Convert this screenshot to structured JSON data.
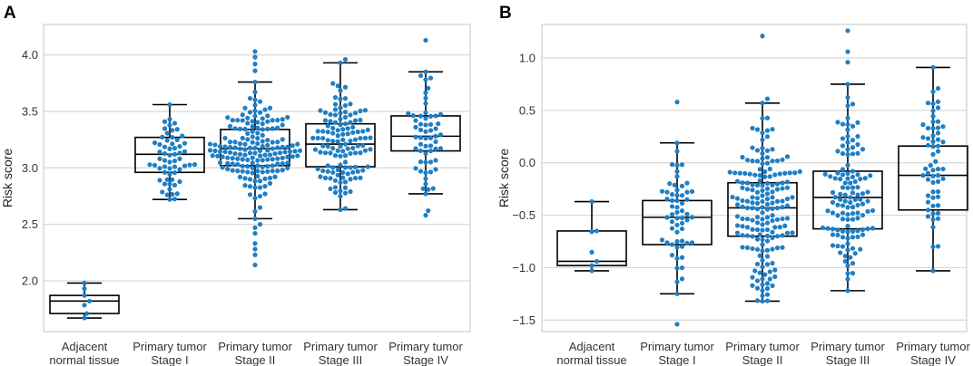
{
  "chart_data": [
    {
      "panel": "A",
      "type": "box-swarm",
      "ylabel": "Risk score",
      "xlabel": "",
      "ylim": [
        1.55,
        4.27
      ],
      "yticks": [
        "2.0",
        "2.5",
        "3.0",
        "3.5",
        "4.0"
      ],
      "ytick_values": [
        2.0,
        2.5,
        3.0,
        3.5,
        4.0
      ],
      "grid": "horizontal",
      "point_color": "#1f7fc4",
      "categories": [
        {
          "line1": "Adjacent",
          "line2": "normal tissue",
          "n": 7,
          "whisker_low": 1.67,
          "q1": 1.71,
          "median": 1.82,
          "q3": 1.87,
          "whisker_high": 1.98,
          "outliers": []
        },
        {
          "line1": "Primary tumor",
          "line2": "Stage I",
          "n": 60,
          "whisker_low": 2.72,
          "q1": 2.96,
          "median": 3.12,
          "q3": 3.27,
          "whisker_high": 3.56,
          "outliers": []
        },
        {
          "line1": "Primary tumor",
          "line2": "Stage II",
          "n": 180,
          "whisker_low": 2.55,
          "q1": 3.02,
          "median": 3.17,
          "q3": 3.34,
          "whisker_high": 3.76,
          "outliers": [
            2.14,
            2.23,
            2.28,
            2.33,
            2.42,
            2.47,
            2.5,
            3.86,
            3.92,
            3.98,
            4.03
          ]
        },
        {
          "line1": "Primary tumor",
          "line2": "Stage III",
          "n": 125,
          "whisker_low": 2.63,
          "q1": 3.01,
          "median": 3.21,
          "q3": 3.39,
          "whisker_high": 3.93,
          "outliers": [
            3.96
          ]
        },
        {
          "line1": "Primary tumor",
          "line2": "Stage IV",
          "n": 60,
          "whisker_low": 2.77,
          "q1": 3.15,
          "median": 3.28,
          "q3": 3.46,
          "whisker_high": 3.85,
          "outliers": [
            2.58,
            2.62,
            4.13
          ]
        }
      ]
    },
    {
      "panel": "B",
      "type": "box-swarm",
      "ylabel": "Risk score",
      "xlabel": "",
      "ylim": [
        -1.61,
        1.32
      ],
      "yticks": [
        "−1.5",
        "−1.0",
        "−0.5",
        "0.0",
        "0.5",
        "1.0"
      ],
      "ytick_values": [
        -1.5,
        -1.0,
        -0.5,
        0.0,
        0.5,
        1.0
      ],
      "grid": "horizontal",
      "point_color": "#1f7fc4",
      "categories": [
        {
          "line1": "Adjacent",
          "line2": "normal tissue",
          "n": 7,
          "whisker_low": -1.03,
          "q1": -0.98,
          "median": -0.94,
          "q3": -0.65,
          "whisker_high": -0.37,
          "outliers": []
        },
        {
          "line1": "Primary tumor",
          "line2": "Stage I",
          "n": 60,
          "whisker_low": -1.25,
          "q1": -0.78,
          "median": -0.52,
          "q3": -0.36,
          "whisker_high": 0.19,
          "outliers": [
            0.58,
            -1.54
          ]
        },
        {
          "line1": "Primary tumor",
          "line2": "Stage II",
          "n": 180,
          "whisker_low": -1.32,
          "q1": -0.7,
          "median": -0.43,
          "q3": -0.19,
          "whisker_high": 0.57,
          "outliers": [
            0.61,
            1.21
          ]
        },
        {
          "line1": "Primary tumor",
          "line2": "Stage III",
          "n": 125,
          "whisker_low": -1.22,
          "q1": -0.63,
          "median": -0.33,
          "q3": -0.08,
          "whisker_high": 0.75,
          "outliers": [
            0.96,
            1.06,
            1.26
          ]
        },
        {
          "line1": "Primary tumor",
          "line2": "Stage IV",
          "n": 60,
          "whisker_low": -1.03,
          "q1": -0.45,
          "median": -0.12,
          "q3": 0.16,
          "whisker_high": 0.91,
          "outliers": []
        }
      ]
    }
  ]
}
